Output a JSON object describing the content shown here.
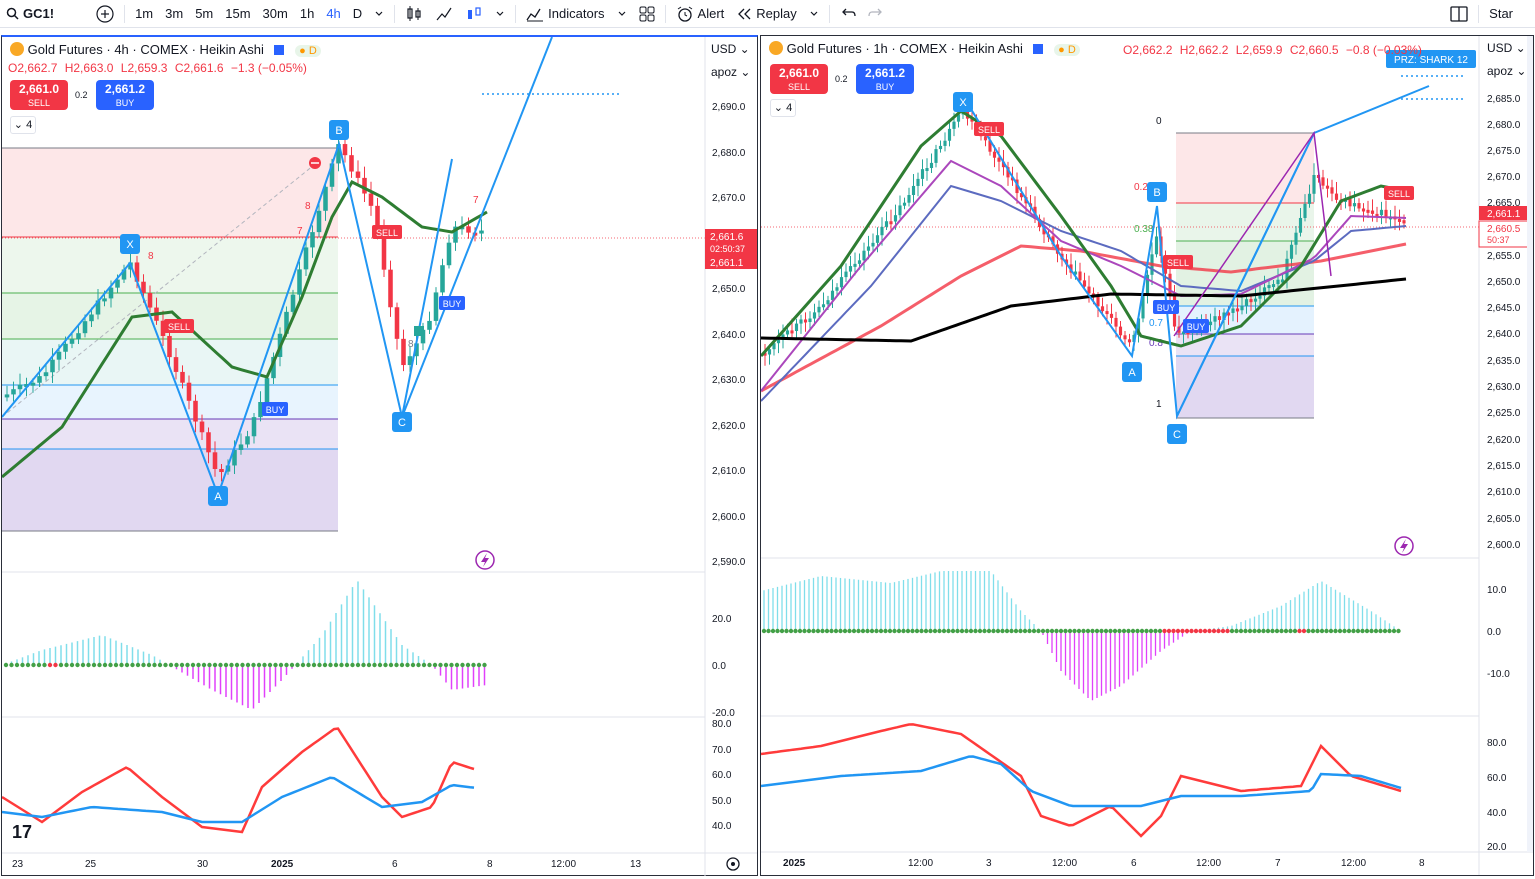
{
  "toolbar": {
    "symbol": "GC1!",
    "intervals": [
      "1m",
      "3m",
      "5m",
      "15m",
      "30m",
      "1h",
      "4h",
      "D"
    ],
    "active_interval": "4h",
    "indicators": "Indicators",
    "alert": "Alert",
    "replay": "Replay",
    "star": "Star"
  },
  "left": {
    "title": "Gold Futures · 4h · COMEX · Heikin Ashi",
    "badge": "D",
    "ohlc": {
      "o": "O2,662.7",
      "h": "H2,663.0",
      "l": "L2,659.3",
      "c": "C2,661.6",
      "chg": "−1.3 (−0.05%)"
    },
    "sell": {
      "price": "2,661.0",
      "label": "SELL"
    },
    "buy": {
      "price": "2,661.2",
      "label": "BUY"
    },
    "spread": "0.2",
    "collapse": "4",
    "currency": "USD",
    "scale_mode": "apoz",
    "price_axis": [
      "2,690.0",
      "2,680.0",
      "2,670.0",
      "2,650.0",
      "2,640.0",
      "2,630.0",
      "2,620.0",
      "2,610.0",
      "2,600.0",
      "2,590.0"
    ],
    "price_tags": {
      "last": "2,661.6",
      "countdown": "02:50:37",
      "ask": "2,661.1"
    },
    "macd_axis": [
      "20.0",
      "0.0",
      "-20.0"
    ],
    "rsi_axis": [
      "80.0",
      "70.0",
      "60.0",
      "50.0",
      "40.0"
    ],
    "time_axis": [
      "23",
      "25",
      "30",
      "2025",
      "6",
      "8",
      "12:00",
      "13"
    ],
    "pattern_points": [
      "X",
      "A",
      "B",
      "C"
    ],
    "signals": {
      "sell": "SELL",
      "buy": "BUY"
    },
    "marks": [
      "8",
      "8",
      "7",
      "7",
      "8"
    ]
  },
  "right": {
    "title": "Gold Futures · 1h · COMEX · Heikin Ashi",
    "badge": "D",
    "ohlc": {
      "o": "O2,662.2",
      "h": "H2,662.2",
      "l": "L2,659.9",
      "c": "C2,660.5",
      "chg": "−0.8 (−0.03%)"
    },
    "sell": {
      "price": "2,661.0",
      "label": "SELL"
    },
    "buy": {
      "price": "2,661.2",
      "label": "BUY"
    },
    "spread": "0.2",
    "collapse": "4",
    "currency": "USD",
    "scale_mode": "apoz",
    "price_axis": [
      "2,685.0",
      "2,680.0",
      "2,675.0",
      "2,670.0",
      "2,665.0",
      "2,655.0",
      "2,650.0",
      "2,645.0",
      "2,640.0",
      "2,635.0",
      "2,630.0",
      "2,625.0",
      "2,620.0",
      "2,615.0",
      "2,610.0",
      "2,605.0",
      "2,600.0"
    ],
    "price_tags": {
      "last": "2,661.1",
      "close": "2,660.5",
      "countdown": "50:37"
    },
    "macd_axis": [
      "10.0",
      "0.0",
      "-10.0"
    ],
    "rsi_axis": [
      "80.0",
      "60.0",
      "40.0",
      "20.0"
    ],
    "time_axis": [
      "2025",
      "12:00",
      "3",
      "12:00",
      "6",
      "12:00",
      "7",
      "12:00",
      "8"
    ],
    "prz_label": "PRZ: SHARK 12",
    "fib_labels": [
      "0",
      "0.2",
      "0.38",
      "0.7",
      "0.8",
      "1"
    ],
    "pattern_points": [
      "X",
      "A",
      "B",
      "C"
    ],
    "signals": {
      "sell": "SELL",
      "buy": "BUY"
    }
  },
  "colors": {
    "up": "#26a69a",
    "down": "#f23645",
    "accent": "#2962ff",
    "pattern": "#2196f3",
    "macd_pos": "#80deea",
    "macd_neg": "#e040fb",
    "rsi_fast": "#ff3b3b",
    "rsi_slow": "#2196f3"
  }
}
